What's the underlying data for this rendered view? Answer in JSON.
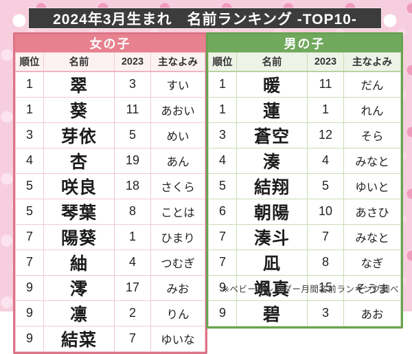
{
  "title": "2024年3月生まれ　名前ランキング -TOP10-",
  "footer_note": "※ベビーカレンダー月間名前ランキング調べ",
  "columns": [
    "順位",
    "名前",
    "2023",
    "主なよみ"
  ],
  "colors": {
    "title_bg": "#3c3c3c",
    "girls_accent": "#e8818f",
    "girls_border": "#dd7387",
    "girls_grid": "#f3c9d2",
    "girls_header_bg": "#fdf2f2",
    "boys_accent": "#70a85c",
    "boys_border": "#68a352",
    "boys_grid": "#c8dcb4",
    "boys_header_bg": "#eef3e7",
    "background_pink": "#f7cedd"
  },
  "girls": {
    "label": "女の子",
    "rows": [
      {
        "rank": "1",
        "name": "翠",
        "prev": "3",
        "reading": "すい"
      },
      {
        "rank": "1",
        "name": "葵",
        "prev": "11",
        "reading": "あおい"
      },
      {
        "rank": "3",
        "name": "芽依",
        "prev": "5",
        "reading": "めい"
      },
      {
        "rank": "4",
        "name": "杏",
        "prev": "19",
        "reading": "あん"
      },
      {
        "rank": "5",
        "name": "咲良",
        "prev": "18",
        "reading": "さくら"
      },
      {
        "rank": "5",
        "name": "琴葉",
        "prev": "8",
        "reading": "ことは"
      },
      {
        "rank": "7",
        "name": "陽葵",
        "prev": "1",
        "reading": "ひまり"
      },
      {
        "rank": "7",
        "name": "紬",
        "prev": "4",
        "reading": "つむぎ"
      },
      {
        "rank": "9",
        "name": "澪",
        "prev": "17",
        "reading": "みお"
      },
      {
        "rank": "9",
        "name": "凛",
        "prev": "2",
        "reading": "りん"
      },
      {
        "rank": "9",
        "name": "結菜",
        "prev": "7",
        "reading": "ゆいな"
      }
    ]
  },
  "boys": {
    "label": "男の子",
    "rows": [
      {
        "rank": "1",
        "name": "暖",
        "prev": "11",
        "reading": "だん"
      },
      {
        "rank": "1",
        "name": "蓮",
        "prev": "1",
        "reading": "れん"
      },
      {
        "rank": "3",
        "name": "蒼空",
        "prev": "12",
        "reading": "そら"
      },
      {
        "rank": "4",
        "name": "湊",
        "prev": "4",
        "reading": "みなと"
      },
      {
        "rank": "5",
        "name": "結翔",
        "prev": "5",
        "reading": "ゆいと"
      },
      {
        "rank": "6",
        "name": "朝陽",
        "prev": "10",
        "reading": "あさひ"
      },
      {
        "rank": "7",
        "name": "湊斗",
        "prev": "7",
        "reading": "みなと"
      },
      {
        "rank": "7",
        "name": "凪",
        "prev": "8",
        "reading": "なぎ"
      },
      {
        "rank": "9",
        "name": "颯真",
        "prev": "15",
        "reading": "そうま"
      },
      {
        "rank": "9",
        "name": "碧",
        "prev": "3",
        "reading": "あお"
      }
    ]
  }
}
